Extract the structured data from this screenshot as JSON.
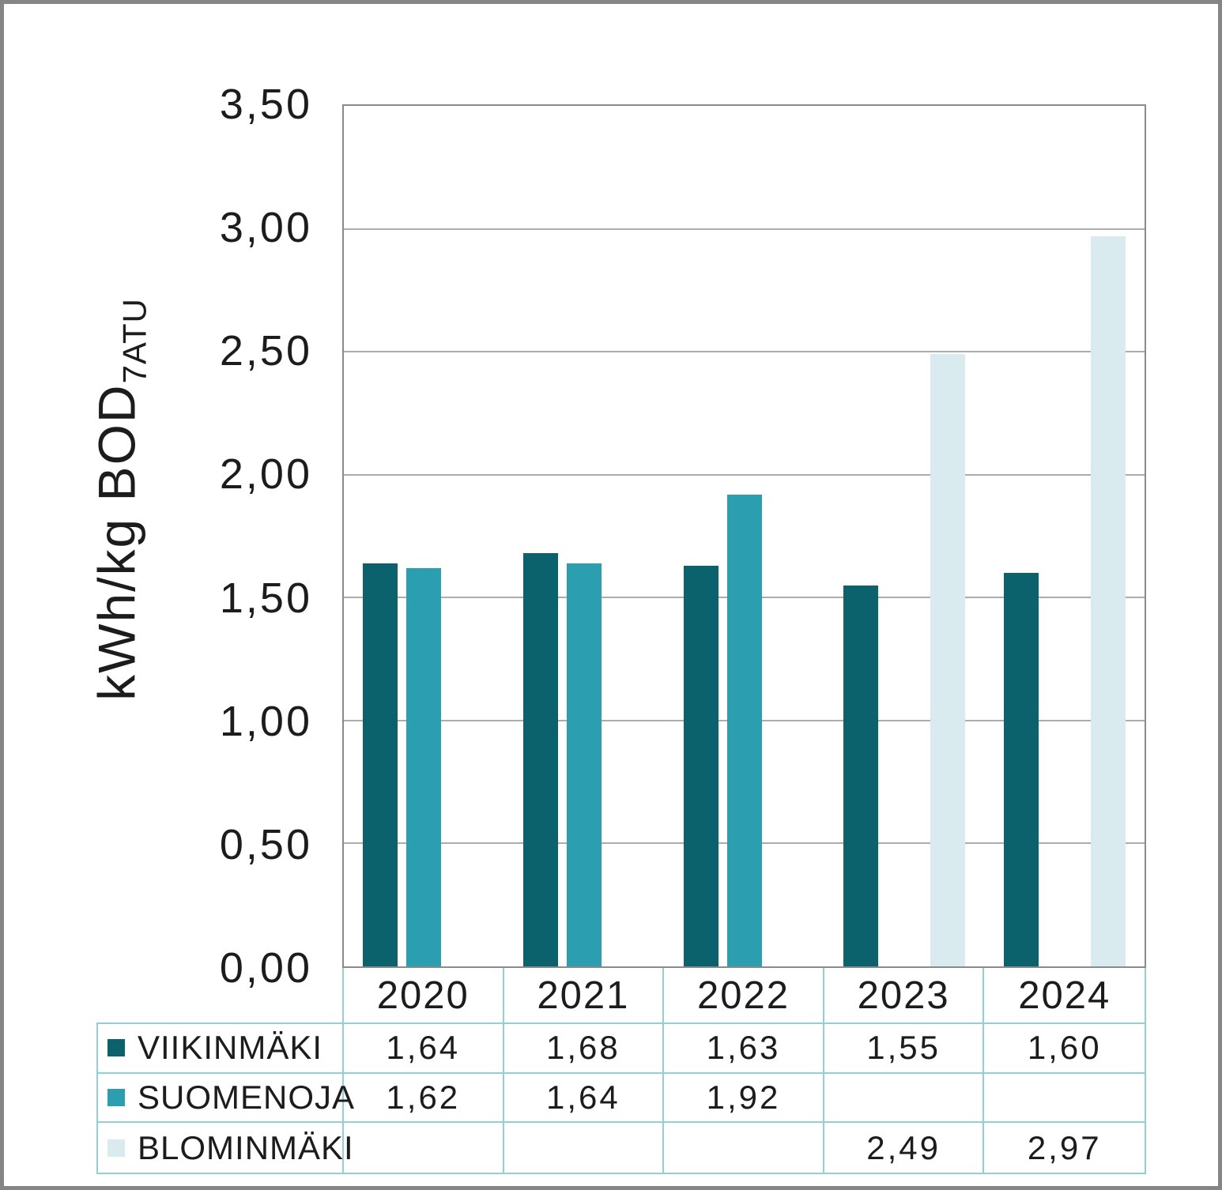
{
  "chart_data": {
    "type": "bar",
    "categories": [
      "2020",
      "2021",
      "2022",
      "2023",
      "2024"
    ],
    "series": [
      {
        "name": "VIIKINMÄKI",
        "color": "#0b616c",
        "values": [
          1.64,
          1.68,
          1.63,
          1.55,
          1.6
        ]
      },
      {
        "name": "SUOMENOJA",
        "color": "#2b9faf",
        "values": [
          1.62,
          1.64,
          1.92,
          null,
          null
        ]
      },
      {
        "name": "BLOMINMÄKI",
        "color": "#d9ebef",
        "values": [
          null,
          null,
          null,
          2.49,
          2.97
        ]
      }
    ],
    "ylabel_main": "kWh/kg BOD",
    "ylabel_sub": "7ATU",
    "yticks": [
      "3,50",
      "3,00",
      "2,50",
      "2,00",
      "1,50",
      "1,00",
      "0,50",
      "0,00"
    ],
    "ylim": [
      0.0,
      3.5
    ],
    "grid": true,
    "legend_position": "table-bottom",
    "xlabel": "",
    "title": ""
  },
  "table": {
    "years": [
      "2020",
      "2021",
      "2022",
      "2023",
      "2024"
    ],
    "rows": [
      {
        "label": "VIIKINMÄKI",
        "swatch_color": "#0b616c",
        "values": [
          "1,64",
          "1,68",
          "1,63",
          "1,55",
          "1,60"
        ]
      },
      {
        "label": "SUOMENOJA",
        "swatch_color": "#2b9faf",
        "values": [
          "1,62",
          "1,64",
          "1,92",
          "",
          ""
        ]
      },
      {
        "label": "BLOMINMÄKI",
        "swatch_color": "#d9ebef",
        "values": [
          "",
          "",
          "",
          "2,49",
          "2,97"
        ]
      }
    ]
  },
  "colors": {
    "grid_line": "#aeabac",
    "plot_border": "#8c8989",
    "table_border": "#8fd1d6",
    "outer_frame": "#878485",
    "text": "#1c1c1c"
  }
}
